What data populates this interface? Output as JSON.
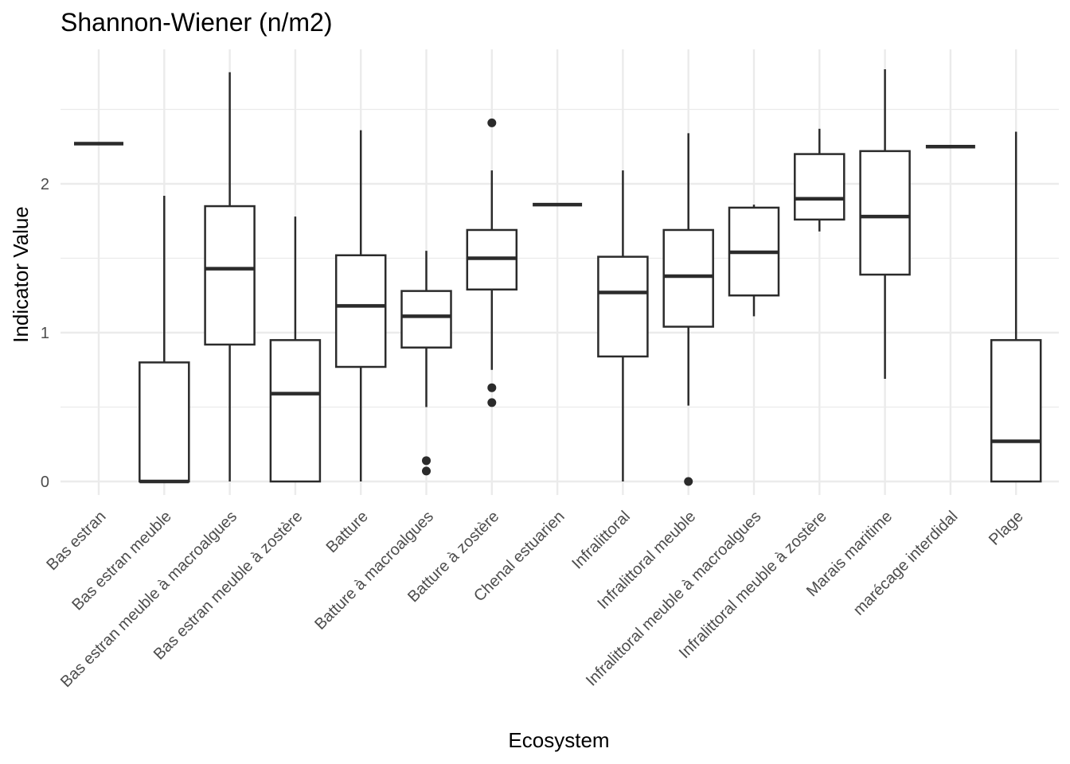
{
  "chart_data": {
    "type": "boxplot",
    "title": "Shannon-Wiener (n/m2)",
    "xlabel": "Ecosystem",
    "ylabel": "Indicator Value",
    "yticks": [
      0,
      1,
      2
    ],
    "ylim": [
      -0.15,
      2.9
    ],
    "grid": true,
    "colors": {
      "box_stroke": "#2b2b2b",
      "grid": "#ebebeb",
      "background": "#ffffff"
    },
    "categories": [
      "Bas estran",
      "Bas estran meuble",
      "Bas estran meuble à macroalgues",
      "Bas estran meuble à zostère",
      "Batture",
      "Batture à macroalgues",
      "Batture à zostère",
      "Chenal estuarien",
      "Infralittoral",
      "Infralittoral meuble",
      "Infralittoral meuble à macroalgues",
      "Infralittoral meuble à zostère",
      "Marais maritime",
      "marécage interdidal",
      "Plage"
    ],
    "boxes": [
      {
        "min": 2.27,
        "q1": 2.27,
        "median": 2.27,
        "q3": 2.27,
        "max": 2.27,
        "outliers": []
      },
      {
        "min": 0.0,
        "q1": 0.0,
        "median": 0.0,
        "q3": 0.8,
        "max": 1.92,
        "outliers": []
      },
      {
        "min": 0.0,
        "q1": 0.92,
        "median": 1.43,
        "q3": 1.85,
        "max": 2.75,
        "outliers": []
      },
      {
        "min": 0.0,
        "q1": 0.0,
        "median": 0.59,
        "q3": 0.95,
        "max": 1.78,
        "outliers": []
      },
      {
        "min": 0.0,
        "q1": 0.77,
        "median": 1.18,
        "q3": 1.52,
        "max": 2.36,
        "outliers": []
      },
      {
        "min": 0.5,
        "q1": 0.9,
        "median": 1.11,
        "q3": 1.28,
        "max": 1.55,
        "outliers": [
          0.14,
          0.07
        ]
      },
      {
        "min": 0.75,
        "q1": 1.29,
        "median": 1.5,
        "q3": 1.69,
        "max": 2.09,
        "outliers": [
          2.41,
          0.63,
          0.53
        ]
      },
      {
        "min": 1.86,
        "q1": 1.86,
        "median": 1.86,
        "q3": 1.86,
        "max": 1.86,
        "outliers": []
      },
      {
        "min": 0.0,
        "q1": 0.84,
        "median": 1.27,
        "q3": 1.51,
        "max": 2.09,
        "outliers": []
      },
      {
        "min": 0.51,
        "q1": 1.04,
        "median": 1.38,
        "q3": 1.69,
        "max": 2.34,
        "outliers": [
          0.0
        ]
      },
      {
        "min": 1.11,
        "q1": 1.25,
        "median": 1.54,
        "q3": 1.84,
        "max": 1.86,
        "outliers": []
      },
      {
        "min": 1.68,
        "q1": 1.76,
        "median": 1.9,
        "q3": 2.2,
        "max": 2.37,
        "outliers": []
      },
      {
        "min": 0.69,
        "q1": 1.39,
        "median": 1.78,
        "q3": 2.22,
        "max": 2.77,
        "outliers": []
      },
      {
        "min": 2.25,
        "q1": 2.25,
        "median": 2.25,
        "q3": 2.25,
        "max": 2.25,
        "outliers": []
      },
      {
        "min": 0.0,
        "q1": 0.0,
        "median": 0.27,
        "q3": 0.95,
        "max": 2.35,
        "outliers": []
      }
    ]
  }
}
